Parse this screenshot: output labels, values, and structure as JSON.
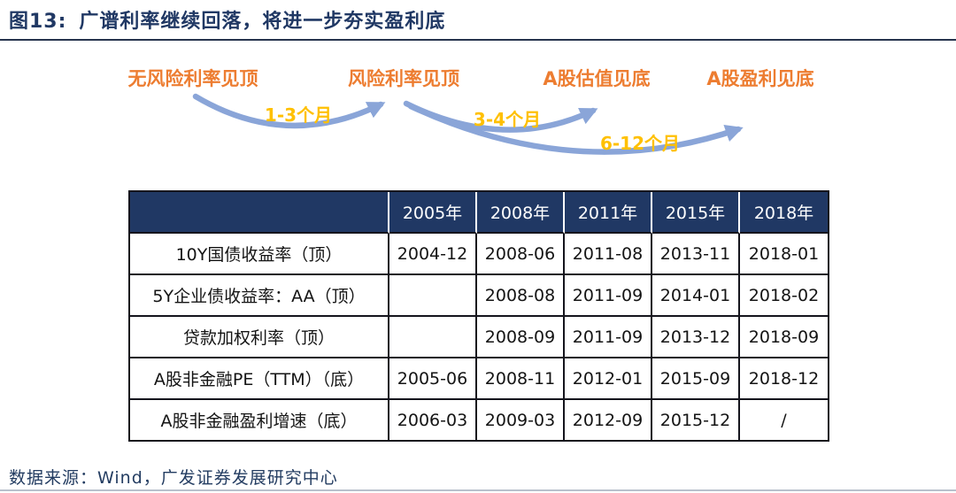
{
  "header": {
    "figure_label": "图13:",
    "title": "广谱利率继续回落，将进一步夯实盈利底"
  },
  "diagram": {
    "stages": [
      {
        "label": "无风险利率见顶"
      },
      {
        "label": "风险利率见顶"
      },
      {
        "label": "A股估值见底"
      },
      {
        "label": "A股盈利见底"
      }
    ],
    "durations": [
      {
        "label": "1-3个月"
      },
      {
        "label": "3-4个月"
      },
      {
        "label": "6-12个月"
      }
    ]
  },
  "table": {
    "columns": [
      "",
      "2005年",
      "2008年",
      "2011年",
      "2015年",
      "2018年"
    ],
    "rows": [
      {
        "label": "10Y国债收益率（顶）",
        "values": [
          "2004-12",
          "2008-06",
          "2011-08",
          "2013-11",
          "2018-01"
        ]
      },
      {
        "label": "5Y企业债收益率：AA（顶）",
        "values": [
          "",
          "2008-08",
          "2011-09",
          "2014-01",
          "2018-02"
        ]
      },
      {
        "label": "贷款加权利率（顶）",
        "values": [
          "",
          "2008-09",
          "2011-09",
          "2013-12",
          "2018-09"
        ]
      },
      {
        "label": "A股非金融PE（TTM）（底）",
        "values": [
          "2005-06",
          "2008-11",
          "2012-01",
          "2015-09",
          "2018-12"
        ]
      },
      {
        "label": "A股非金融盈利增速（底）",
        "values": [
          "2006-03",
          "2009-03",
          "2012-09",
          "2015-12",
          "/"
        ]
      }
    ]
  },
  "footer": {
    "source": "数据来源：Wind，广发证券发展研究中心"
  },
  "colors": {
    "title_navy": "#203864",
    "stage_orange": "#ED7D31",
    "duration_gold": "#FFC000",
    "arrow_blue": "#8AA5D8",
    "header_bg": "#203864",
    "header_text": "#ffffff",
    "table_border": "#15151d"
  },
  "chart_data": {
    "type": "table",
    "title": "图13: 广谱利率继续回落，将进一步夯实盈利底",
    "flow_sequence": {
      "stages": [
        "无风险利率见顶",
        "风险利率见顶",
        "A股估值见底",
        "A股盈利见底"
      ],
      "lags": [
        {
          "from": "无风险利率见顶",
          "to": "风险利率见顶",
          "lag": "1-3个月"
        },
        {
          "from": "风险利率见顶",
          "to": "A股估值见底",
          "lag": "3-4个月"
        },
        {
          "from": "风险利率见顶",
          "to": "A股盈利见底",
          "lag": "6-12个月"
        }
      ]
    },
    "columns": [
      "",
      "2005年",
      "2008年",
      "2011年",
      "2015年",
      "2018年"
    ],
    "rows": [
      {
        "label": "10Y国债收益率（顶）",
        "values": [
          "2004-12",
          "2008-06",
          "2011-08",
          "2013-11",
          "2018-01"
        ]
      },
      {
        "label": "5Y企业债收益率：AA（顶）",
        "values": [
          "",
          "2008-08",
          "2011-09",
          "2014-01",
          "2018-02"
        ]
      },
      {
        "label": "贷款加权利率（顶）",
        "values": [
          "",
          "2008-09",
          "2011-09",
          "2013-12",
          "2018-09"
        ]
      },
      {
        "label": "A股非金融PE（TTM）（底）",
        "values": [
          "2005-06",
          "2008-11",
          "2012-01",
          "2015-09",
          "2018-12"
        ]
      },
      {
        "label": "A股非金融盈利增速（底）",
        "values": [
          "2006-03",
          "2009-03",
          "2012-09",
          "2015-12",
          "/"
        ]
      }
    ],
    "source": "数据来源：Wind，广发证券发展研究中心"
  }
}
